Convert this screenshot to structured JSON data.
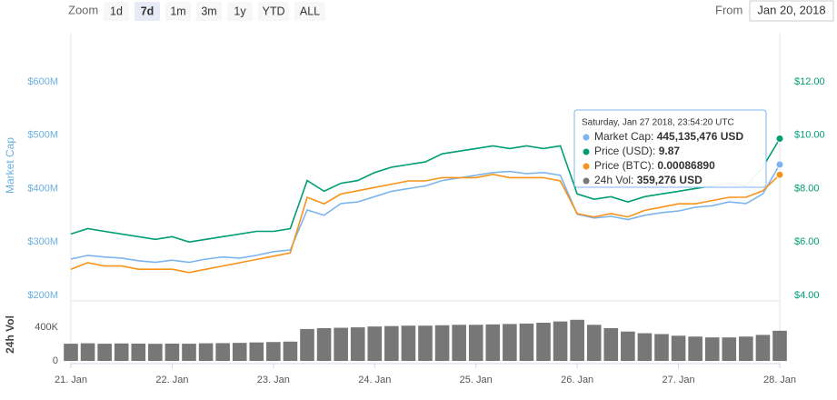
{
  "controls": {
    "zoom_label": "Zoom",
    "buttons": [
      "1d",
      "7d",
      "1m",
      "3m",
      "1y",
      "YTD",
      "ALL"
    ],
    "selected": 1,
    "from_label": "From",
    "from_value": "Jan 20, 2018"
  },
  "tooltip": {
    "title": "Saturday, Jan 27 2018, 23:54:20 UTC",
    "rows": [
      {
        "label": "Market Cap:",
        "value": "445,135,476 USD",
        "color": "#7cb5ec"
      },
      {
        "label": "Price (USD):",
        "value": "9.87",
        "color": "#009e73"
      },
      {
        "label": "Price (BTC):",
        "value": "0.00086890",
        "color": "#f7931a"
      },
      {
        "label": "24h Vol:",
        "value": "359,276 USD",
        "color": "#777777"
      }
    ]
  },
  "chart_data": [
    {
      "type": "line",
      "ylabel": "Market Cap",
      "x": [
        0,
        4,
        8,
        12,
        16,
        20,
        24,
        28,
        32,
        36,
        40,
        44,
        48,
        52,
        56,
        60,
        64,
        68,
        72,
        76,
        80,
        84,
        88,
        92,
        96,
        100,
        104,
        108,
        112,
        116,
        120,
        124,
        128,
        132,
        136,
        140,
        144,
        148,
        152,
        156,
        160,
        164,
        168
      ],
      "xlim": [
        0,
        168
      ],
      "ylim": [
        200,
        690
      ],
      "yticks": [
        {
          "value": 200,
          "label": "$200M"
        },
        {
          "value": 300,
          "label": "$300M"
        },
        {
          "value": 400,
          "label": "$400M"
        },
        {
          "value": 500,
          "label": "$500M"
        },
        {
          "value": 600,
          "label": "$600M"
        }
      ],
      "y2lim": [
        4,
        13.8
      ],
      "y2ticks": [
        {
          "value": 4,
          "label": "$4.00"
        },
        {
          "value": 6,
          "label": "$6.00"
        },
        {
          "value": 8,
          "label": "$8.00"
        },
        {
          "value": 10,
          "label": "$10.00"
        },
        {
          "value": 12,
          "label": "$12.00"
        }
      ],
      "y3lim": [
        0.0005,
        0.0013
      ],
      "series": [
        {
          "color": "#7cb5ec",
          "axis": "y",
          "values": [
            268,
            275,
            272,
            270,
            265,
            262,
            266,
            262,
            268,
            272,
            270,
            275,
            282,
            285,
            360,
            350,
            372,
            375,
            385,
            395,
            400,
            405,
            415,
            420,
            425,
            430,
            432,
            428,
            430,
            425,
            352,
            345,
            348,
            342,
            350,
            355,
            358,
            365,
            368,
            375,
            372,
            390,
            445
          ]
        },
        {
          "color": "#009e73",
          "axis": "y2",
          "values": [
            6.3,
            6.5,
            6.4,
            6.3,
            6.2,
            6.1,
            6.2,
            6.0,
            6.1,
            6.2,
            6.3,
            6.4,
            6.4,
            6.5,
            8.3,
            7.9,
            8.2,
            8.3,
            8.6,
            8.8,
            8.9,
            9.0,
            9.3,
            9.4,
            9.5,
            9.6,
            9.5,
            9.6,
            9.5,
            9.6,
            7.8,
            7.6,
            7.7,
            7.5,
            7.7,
            7.8,
            7.9,
            8.0,
            8.1,
            8.2,
            8.1,
            8.8,
            9.87
          ]
        },
        {
          "color": "#f7931a",
          "axis": "y3",
          "values": [
            0.00058,
            0.0006,
            0.00059,
            0.00059,
            0.00058,
            0.00058,
            0.00058,
            0.00057,
            0.00058,
            0.00059,
            0.0006,
            0.00061,
            0.00062,
            0.00063,
            0.0008,
            0.00078,
            0.00081,
            0.00082,
            0.00083,
            0.00084,
            0.00085,
            0.00085,
            0.00086,
            0.00086,
            0.00086,
            0.00087,
            0.00086,
            0.00086,
            0.00086,
            0.00085,
            0.00075,
            0.00074,
            0.00075,
            0.00074,
            0.00076,
            0.00077,
            0.00078,
            0.00078,
            0.00079,
            0.0008,
            0.0008,
            0.00082,
            0.0008689
          ]
        }
      ]
    },
    {
      "type": "bar",
      "ylabel": "24h Vol",
      "color": "#777777",
      "x": [
        0,
        4,
        8,
        12,
        16,
        20,
        24,
        28,
        32,
        36,
        40,
        44,
        48,
        52,
        56,
        60,
        64,
        68,
        72,
        76,
        80,
        84,
        88,
        92,
        96,
        100,
        104,
        108,
        112,
        116,
        120,
        124,
        128,
        132,
        136,
        140,
        144,
        148,
        152,
        156,
        160,
        164,
        168
      ],
      "xlim": [
        0,
        168
      ],
      "xticks": [
        {
          "value": 0,
          "label": "21. Jan"
        },
        {
          "value": 24,
          "label": "22. Jan"
        },
        {
          "value": 48,
          "label": "23. Jan"
        },
        {
          "value": 72,
          "label": "24. Jan"
        },
        {
          "value": 96,
          "label": "25. Jan"
        },
        {
          "value": 120,
          "label": "26. Jan"
        },
        {
          "value": 144,
          "label": "27. Jan"
        },
        {
          "value": 168,
          "label": "28. Jan"
        }
      ],
      "ylim": [
        0,
        650000
      ],
      "yticks": [
        0,
        {
          "value": 400000,
          "label": "400K"
        }
      ],
      "values": [
        205000,
        210000,
        205000,
        208000,
        206000,
        204000,
        206000,
        205000,
        210000,
        212000,
        215000,
        220000,
        225000,
        230000,
        380000,
        390000,
        395000,
        400000,
        410000,
        415000,
        420000,
        420000,
        425000,
        430000,
        430000,
        435000,
        440000,
        445000,
        455000,
        470000,
        490000,
        430000,
        390000,
        350000,
        330000,
        320000,
        300000,
        290000,
        280000,
        280000,
        290000,
        310000,
        359276
      ]
    }
  ]
}
